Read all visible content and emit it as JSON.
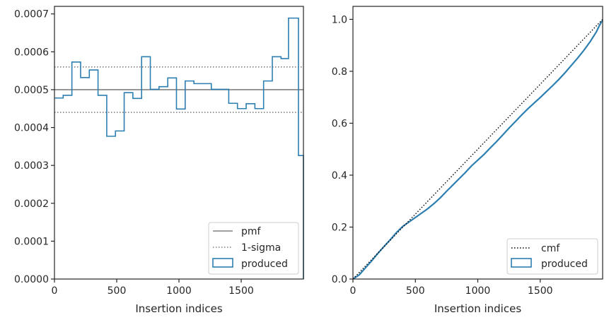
{
  "colors": {
    "produced": "#2c7fb0",
    "reference": "#808080",
    "cmf": "#000000",
    "axes": "#262626"
  },
  "chart_data": [
    {
      "type": "step",
      "xlabel": "Insertion indices",
      "ylabel": "",
      "xlim": [
        0,
        2000
      ],
      "ylim": [
        0,
        0.00072
      ],
      "xticks": [
        0,
        500,
        1000,
        1500
      ],
      "xtick_labels": [
        "0",
        "500",
        "1000",
        "1500"
      ],
      "yticks": [
        0,
        0.0001,
        0.0002,
        0.0003,
        0.0004,
        0.0005,
        0.0006,
        0.0007
      ],
      "ytick_labels": [
        "0.0000",
        "0.0001",
        "0.0002",
        "0.0003",
        "0.0004",
        "0.0005",
        "0.0006",
        "0.0007"
      ],
      "legend_position": "lower right",
      "series": [
        {
          "name": "produced",
          "style": "histogram-step",
          "bin_edges": [
            0,
            70,
            140,
            210,
            280,
            350,
            420,
            490,
            560,
            630,
            700,
            770,
            840,
            910,
            980,
            1050,
            1120,
            1190,
            1260,
            1330,
            1400,
            1470,
            1540,
            1610,
            1680,
            1750,
            1820,
            1880,
            1960,
            2000
          ],
          "values": [
            0.000478,
            0.000485,
            0.000573,
            0.000532,
            0.000552,
            0.000485,
            0.000377,
            0.000391,
            0.000492,
            0.000477,
            0.000587,
            0.000501,
            0.000508,
            0.000531,
            0.000449,
            0.000523,
            0.000516,
            0.000516,
            0.000501,
            0.000501,
            0.000464,
            0.00045,
            0.000463,
            0.00045,
            0.000523,
            0.000587,
            0.000582,
            0.000689,
            0.000326
          ]
        },
        {
          "name": "pmf",
          "style": "solid",
          "value": 0.0005
        },
        {
          "name": "1-sigma",
          "style": "dotted",
          "values": [
            0.00056,
            0.00044
          ]
        }
      ]
    },
    {
      "type": "line",
      "xlabel": "Insertion indices",
      "ylabel": "",
      "xlim": [
        0,
        2000
      ],
      "ylim": [
        0,
        1.05
      ],
      "xticks": [
        0,
        500,
        1000,
        1500
      ],
      "xtick_labels": [
        "0",
        "500",
        "1000",
        "1500"
      ],
      "yticks": [
        0,
        0.2,
        0.4,
        0.6,
        0.8,
        1.0
      ],
      "ytick_labels": [
        "0.0",
        "0.2",
        "0.4",
        "0.6",
        "0.8",
        "1.0"
      ],
      "legend_position": "lower right",
      "series": [
        {
          "name": "cmf",
          "style": "dotted",
          "x": [
            0,
            2000
          ],
          "y": [
            0,
            1
          ]
        },
        {
          "name": "produced",
          "style": "solid",
          "x": [
            0,
            50,
            100,
            150,
            200,
            250,
            300,
            350,
            400,
            450,
            500,
            550,
            600,
            650,
            700,
            750,
            800,
            850,
            900,
            950,
            1000,
            1050,
            1100,
            1150,
            1200,
            1250,
            1300,
            1350,
            1400,
            1450,
            1500,
            1550,
            1600,
            1650,
            1700,
            1750,
            1800,
            1850,
            1900,
            1950,
            1970,
            1990,
            2000
          ],
          "y": [
            0,
            0.016,
            0.043,
            0.07,
            0.099,
            0.126,
            0.152,
            0.18,
            0.203,
            0.22,
            0.237,
            0.254,
            0.271,
            0.291,
            0.313,
            0.338,
            0.362,
            0.386,
            0.41,
            0.436,
            0.458,
            0.48,
            0.505,
            0.529,
            0.555,
            0.581,
            0.606,
            0.631,
            0.655,
            0.677,
            0.699,
            0.722,
            0.745,
            0.769,
            0.795,
            0.823,
            0.851,
            0.881,
            0.914,
            0.952,
            0.972,
            0.99,
            0.995
          ]
        }
      ]
    }
  ]
}
